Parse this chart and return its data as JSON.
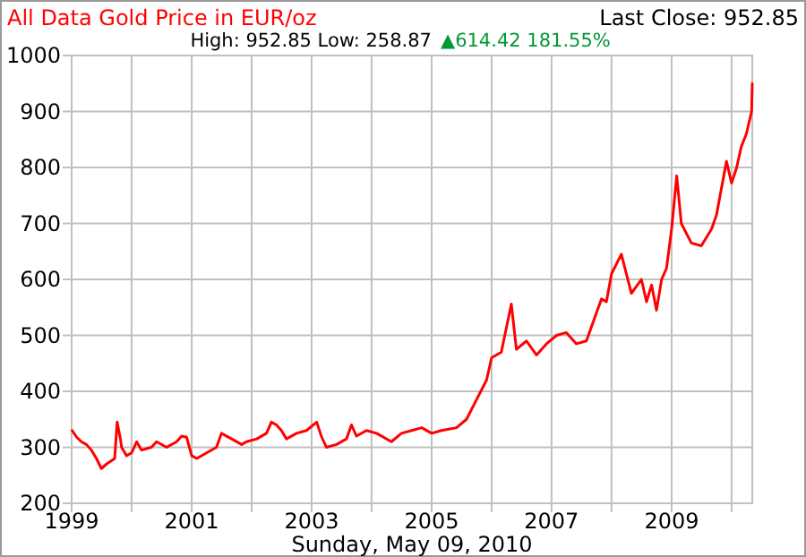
{
  "chart_data": {
    "type": "line",
    "title": "All Data Gold Price in EUR/oz",
    "subtitle": "High: 952.85 Low: 258.87",
    "xlabel": "Sunday, May 09, 2010",
    "annotations": [
      "▲614.42 181.55%",
      "Last Close: 952.85"
    ],
    "x": [
      "1999-01-04",
      "1999-02",
      "1999-03",
      "1999-04",
      "1999-05",
      "1999-06",
      "1999-07",
      "1999-08",
      "1999-09-20",
      "1999-10-05",
      "1999-10-25",
      "1999-11",
      "1999-12",
      "2000-01",
      "2000-02",
      "2000-03",
      "2000-05",
      "2000-06",
      "2000-08",
      "2000-10",
      "2000-11",
      "2000-12",
      "2001-01",
      "2001-02",
      "2001-04",
      "2001-06",
      "2001-07",
      "2001-09",
      "2001-11",
      "2001-12",
      "2002-02",
      "2002-04",
      "2002-05",
      "2002-06",
      "2002-07",
      "2002-08",
      "2002-10",
      "2002-12",
      "2003-02",
      "2003-03",
      "2003-04",
      "2003-06",
      "2003-08",
      "2003-09",
      "2003-10",
      "2003-12",
      "2004-02",
      "2004-05",
      "2004-07",
      "2004-09",
      "2004-11",
      "2005-01",
      "2005-03",
      "2005-06",
      "2005-08",
      "2005-10",
      "2005-12",
      "2006-01",
      "2006-03",
      "2006-05",
      "2006-06",
      "2006-08",
      "2006-10",
      "2006-12",
      "2007-02",
      "2007-04",
      "2007-06",
      "2007-08",
      "2007-10",
      "2007-11",
      "2007-12",
      "2008-01",
      "2008-03",
      "2008-05",
      "2008-07",
      "2008-08",
      "2008-09",
      "2008-10",
      "2008-11",
      "2008-12",
      "2009-01",
      "2009-02",
      "2009-03",
      "2009-05",
      "2009-07",
      "2009-09",
      "2009-10",
      "2009-12",
      "2010-01",
      "2010-02",
      "2010-03",
      "2010-04",
      "2010-05-03",
      "2010-05-07"
    ],
    "series": [
      {
        "color": "#ff0000",
        "values": [
          330,
          318,
          310,
          305,
          295,
          280,
          262,
          270,
          280,
          345,
          315,
          300,
          285,
          290,
          310,
          295,
          300,
          310,
          300,
          310,
          320,
          318,
          285,
          280,
          290,
          300,
          325,
          315,
          305,
          310,
          315,
          325,
          345,
          340,
          330,
          315,
          325,
          330,
          345,
          320,
          300,
          305,
          315,
          340,
          320,
          330,
          325,
          310,
          325,
          330,
          335,
          325,
          330,
          335,
          350,
          385,
          420,
          460,
          470,
          556,
          475,
          490,
          465,
          485,
          500,
          505,
          485,
          490,
          540,
          565,
          560,
          610,
          645,
          575,
          600,
          560,
          590,
          545,
          600,
          620,
          690,
          785,
          700,
          665,
          660,
          690,
          715,
          811,
          772,
          800,
          837,
          860,
          900,
          950
        ]
      }
    ],
    "xlim": [
      "1999-01-01",
      "2010-05-07"
    ],
    "xticks": [
      {
        "value": "1999",
        "label": "1999"
      },
      {
        "value": "2000",
        "label": null
      },
      {
        "value": "2001",
        "label": "2001"
      },
      {
        "value": "2002",
        "label": null
      },
      {
        "value": "2003",
        "label": "2003"
      },
      {
        "value": "2004",
        "label": null
      },
      {
        "value": "2005",
        "label": "2005"
      },
      {
        "value": "2006",
        "label": null
      },
      {
        "value": "2007",
        "label": "2007"
      },
      {
        "value": "2008",
        "label": null
      },
      {
        "value": "2009",
        "label": "2009"
      },
      {
        "value": "2010",
        "label": null
      }
    ],
    "ylim": [
      200,
      1000
    ],
    "yticks": [
      200,
      300,
      400,
      500,
      600,
      700,
      800,
      900,
      1000
    ],
    "grid": true
  }
}
